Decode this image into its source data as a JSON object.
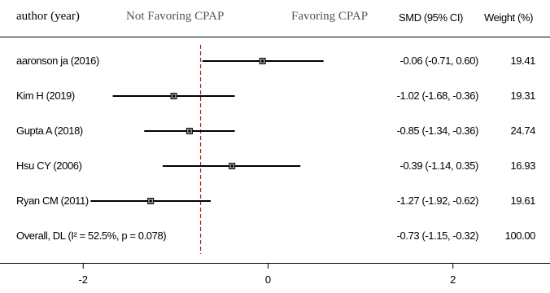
{
  "headers": {
    "study": "author (year)",
    "left_region": "Not Favoring CPAP",
    "right_region": "Favoring CPAP",
    "effect": "SMD (95% CI)",
    "weight": "Weight (%)"
  },
  "chart_data": {
    "type": "forest",
    "xlim": [
      -2.9,
      3.05
    ],
    "xticks": [
      -2,
      0,
      2
    ],
    "xtick_labels": [
      "-2",
      "0",
      "2"
    ],
    "reference_line": 0,
    "overall_line": -0.73,
    "colors": {
      "marker": "#000000",
      "overall_line": "#b22222",
      "ci_line": "#000000"
    },
    "studies": [
      {
        "label": "aaronson ja (2016)",
        "smd": -0.06,
        "lower": -0.71,
        "upper": 0.6,
        "ci_text": "-0.06 (-0.71, 0.60)",
        "weight": "19.41"
      },
      {
        "label": "Kim H (2019)",
        "smd": -1.02,
        "lower": -1.68,
        "upper": -0.36,
        "ci_text": "-1.02 (-1.68, -0.36)",
        "weight": "19.31"
      },
      {
        "label": "Gupta A (2018)",
        "smd": -0.85,
        "lower": -1.34,
        "upper": -0.36,
        "ci_text": "-0.85 (-1.34, -0.36)",
        "weight": "24.74"
      },
      {
        "label": "Hsu CY (2006)",
        "smd": -0.39,
        "lower": -1.14,
        "upper": 0.35,
        "ci_text": "-0.39 (-1.14, 0.35)",
        "weight": "16.93"
      },
      {
        "label": "Ryan CM (2011)",
        "smd": -1.27,
        "lower": -1.92,
        "upper": -0.62,
        "ci_text": "-1.27 (-1.92, -0.62)",
        "weight": "19.61"
      }
    ],
    "overall": {
      "label": "Overall, DL (I² = 52.5%, p = 0.078)",
      "smd": -0.73,
      "lower": -1.15,
      "upper": -0.32,
      "ci_text": "-0.73 (-1.15, -0.32)",
      "weight": "100.00"
    }
  }
}
